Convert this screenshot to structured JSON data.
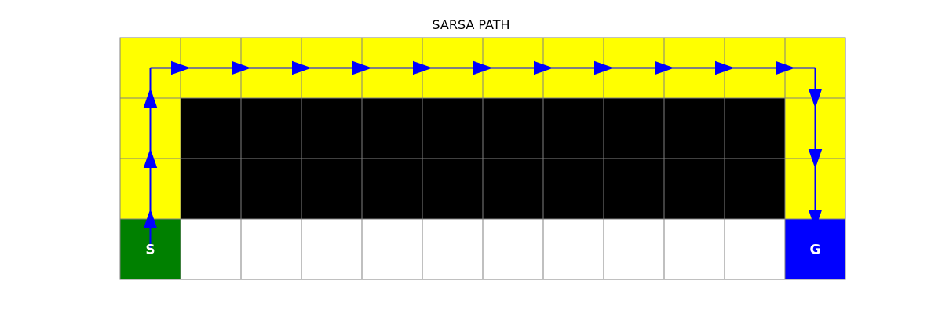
{
  "title": "SARSA PATH",
  "grid": {
    "rows": 4,
    "cols": 12,
    "colors": {
      "path": "#ffff00",
      "cliff": "#000000",
      "empty": "#ffffff",
      "start": "#008000",
      "goal": "#0000ff",
      "gridline": "#808080",
      "arrow": "#0000ff",
      "label": "#ffffff"
    },
    "cells": [
      [
        "path",
        "path",
        "path",
        "path",
        "path",
        "path",
        "path",
        "path",
        "path",
        "path",
        "path",
        "path"
      ],
      [
        "path",
        "cliff",
        "cliff",
        "cliff",
        "cliff",
        "cliff",
        "cliff",
        "cliff",
        "cliff",
        "cliff",
        "cliff",
        "path"
      ],
      [
        "path",
        "cliff",
        "cliff",
        "cliff",
        "cliff",
        "cliff",
        "cliff",
        "cliff",
        "cliff",
        "cliff",
        "cliff",
        "path"
      ],
      [
        "start",
        "empty",
        "empty",
        "empty",
        "empty",
        "empty",
        "empty",
        "empty",
        "empty",
        "empty",
        "empty",
        "goal"
      ]
    ],
    "start": {
      "row": 3,
      "col": 0,
      "label": "S"
    },
    "goal": {
      "row": 3,
      "col": 11,
      "label": "G"
    }
  },
  "path": [
    [
      3,
      0
    ],
    [
      2,
      0
    ],
    [
      1,
      0
    ],
    [
      0,
      0
    ],
    [
      0,
      1
    ],
    [
      0,
      2
    ],
    [
      0,
      3
    ],
    [
      0,
      4
    ],
    [
      0,
      5
    ],
    [
      0,
      6
    ],
    [
      0,
      7
    ],
    [
      0,
      8
    ],
    [
      0,
      9
    ],
    [
      0,
      10
    ],
    [
      0,
      11
    ],
    [
      1,
      11
    ],
    [
      2,
      11
    ],
    [
      3,
      11
    ]
  ]
}
